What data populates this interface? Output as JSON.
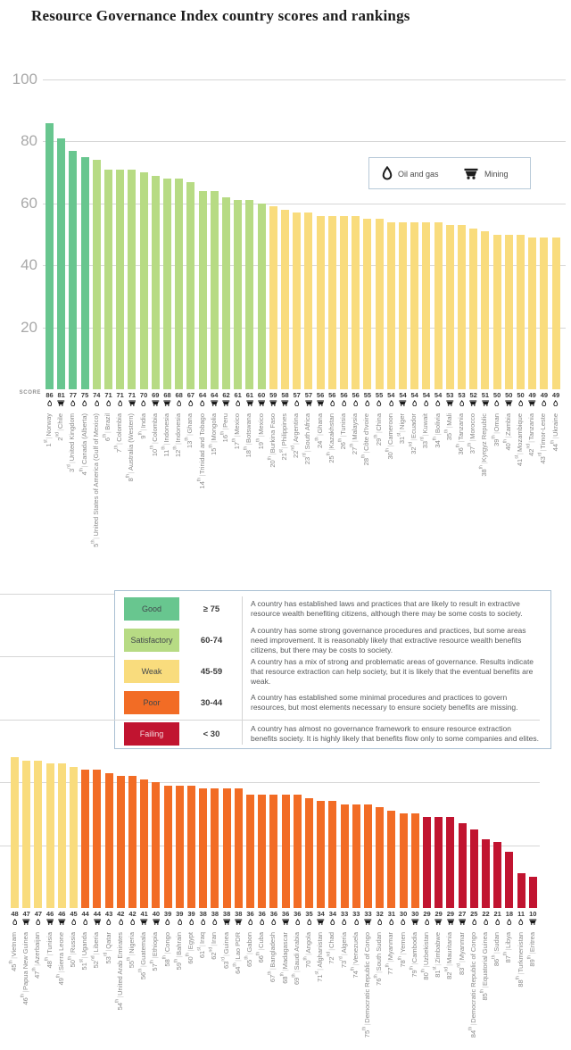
{
  "title": "Resource Governance Index country scores and rankings",
  "score_label": "SCORE",
  "sector_legend": {
    "oil_label": "Oil and gas",
    "mining_label": "Mining"
  },
  "axis": {
    "ticks": [
      20,
      40,
      60,
      80,
      100
    ]
  },
  "colors": {
    "good": "#68c68f",
    "satisfactory": "#b7db84",
    "weak": "#f9dc7d",
    "poor": "#f26c25",
    "failing": "#c11430",
    "grid": "#d6d6d6",
    "axis_text": "#a9a9a9",
    "icon": "#1c1c1c"
  },
  "legend": {
    "categories": [
      {
        "label": "Good",
        "range": "≥ 75",
        "color": "#68c68f",
        "text_color": "#41474c",
        "description": "A country has established laws and practices that are likely to result in extractive resource wealth benefiting citizens, although there may be some costs to society."
      },
      {
        "label": "Satisfactory",
        "range": "60-74",
        "color": "#b7db84",
        "text_color": "#41474c",
        "description": "A country has some strong governance procedures and practices, but some areas need improvement. It is reasonably likely that extractive resource wealth benefits citizens, but there may be costs to society."
      },
      {
        "label": "Weak",
        "range": "45-59",
        "color": "#f9dc7d",
        "text_color": "#41474c",
        "description": "A country has a mix of strong and problematic areas of governance. Results indicate that resource extraction can help society, but it is likely that the eventual benefits are weak."
      },
      {
        "label": "Poor",
        "range": "30-44",
        "color": "#f26c25",
        "text_color": "#41474c",
        "description": "A country has established some minimal procedures and practices to govern resources, but most elements necessary to ensure society benefits are missing."
      },
      {
        "label": "Failing",
        "range": "< 30",
        "color": "#c11430",
        "text_color": "#f3d7dd",
        "description": "A country has almost no governance framework to ensure resource extraction benefits society. It is highly likely that benefits flow only to some companies and elites."
      }
    ]
  },
  "chart_data": {
    "type": "bar",
    "title": "Resource Governance Index country scores and rankings",
    "ylabel": "SCORE",
    "ylim": [
      0,
      100
    ],
    "grid": true,
    "score_thresholds": {
      "good": 75,
      "satisfactory": 60,
      "weak": 45,
      "poor": 30
    },
    "entry_fields": [
      "rank",
      "country",
      "score",
      "sector"
    ],
    "panels": [
      {
        "name": "ranks-1-44",
        "entries": [
          [
            "1st",
            "Norway",
            86,
            "oil"
          ],
          [
            "2nd",
            "Chile",
            81,
            "mining"
          ],
          [
            "3rd",
            "United Kingdom",
            77,
            "oil"
          ],
          [
            "4th",
            "Canada (Alberta)",
            75,
            "oil"
          ],
          [
            "5th",
            "United States of America (Gulf of Mexico)",
            74,
            "oil"
          ],
          [
            "6th",
            "Brazil",
            71,
            "oil"
          ],
          [
            "7th",
            "Colombia",
            71,
            "oil"
          ],
          [
            "8th",
            "Australia (Western)",
            71,
            "mining"
          ],
          [
            "9th",
            "India",
            70,
            "oil"
          ],
          [
            "10th",
            "Colombia",
            69,
            "mining"
          ],
          [
            "11th",
            "Indonesia",
            68,
            "mining"
          ],
          [
            "12th",
            "Indonesia",
            68,
            "oil"
          ],
          [
            "13th",
            "Ghana",
            67,
            "oil"
          ],
          [
            "14th",
            "Trinidad and Tobago",
            64,
            "oil"
          ],
          [
            "15th",
            "Mongolia",
            64,
            "mining"
          ],
          [
            "16th",
            "Peru",
            62,
            "mining"
          ],
          [
            "17th",
            "Mexico",
            61,
            "oil"
          ],
          [
            "18th",
            "Botswana",
            61,
            "mining"
          ],
          [
            "19th",
            "Mexico",
            60,
            "mining"
          ],
          [
            "20th",
            "Burkina Faso",
            59,
            "mining"
          ],
          [
            "21st",
            "Philippines",
            58,
            "mining"
          ],
          [
            "22nd",
            "Argentina",
            57,
            "oil"
          ],
          [
            "23rd",
            "South Africa",
            57,
            "mining"
          ],
          [
            "24th",
            "Ghana",
            56,
            "mining"
          ],
          [
            "25th",
            "Kazakhstan",
            56,
            "oil"
          ],
          [
            "26th",
            "Tunisia",
            56,
            "oil"
          ],
          [
            "27th",
            "Malaysia",
            56,
            "oil"
          ],
          [
            "28th",
            "Côte d'Ivoire",
            55,
            "oil"
          ],
          [
            "29th",
            "China",
            55,
            "oil"
          ],
          [
            "30th",
            "Cameroon",
            54,
            "oil"
          ],
          [
            "31st",
            "Niger",
            54,
            "mining"
          ],
          [
            "32nd",
            "Ecuador",
            54,
            "oil"
          ],
          [
            "33rd",
            "Kuwait",
            54,
            "oil"
          ],
          [
            "34th",
            "Bolivia",
            54,
            "oil"
          ],
          [
            "35th",
            "Mali",
            53,
            "mining"
          ],
          [
            "36th",
            "Tanzania",
            53,
            "oil"
          ],
          [
            "37th",
            "Morocco",
            52,
            "mining"
          ],
          [
            "38th",
            "Kyrgyz Republic",
            51,
            "mining"
          ],
          [
            "39th",
            "Oman",
            50,
            "oil"
          ],
          [
            "40th",
            "Zambia",
            50,
            "mining"
          ],
          [
            "41st",
            "Mozambique",
            50,
            "oil"
          ],
          [
            "42nd",
            "Tanzania",
            49,
            "mining"
          ],
          [
            "43rd",
            "Timor-Leste",
            49,
            "oil"
          ],
          [
            "44th",
            "Ukraine",
            49,
            "oil"
          ]
        ]
      },
      {
        "name": "ranks-45-89",
        "entries": [
          [
            "45th",
            "Vietnam",
            48,
            "oil"
          ],
          [
            "46th",
            "Papua New Guinea",
            47,
            "mining"
          ],
          [
            "47th",
            "Azerbaijan",
            47,
            "oil"
          ],
          [
            "48th",
            "Tunisia",
            46,
            "mining"
          ],
          [
            "49th",
            "Sierra Leone",
            46,
            "mining"
          ],
          [
            "50th",
            "Russia",
            45,
            "oil"
          ],
          [
            "51st",
            "Uganda",
            44,
            "oil"
          ],
          [
            "52nd",
            "Liberia",
            44,
            "mining"
          ],
          [
            "53rd",
            "Qatar",
            43,
            "oil"
          ],
          [
            "54th",
            "United Arab Emirates",
            42,
            "oil"
          ],
          [
            "55th",
            "Nigeria",
            42,
            "oil"
          ],
          [
            "56th",
            "Guatemala",
            41,
            "mining"
          ],
          [
            "57th",
            "Ethiopia",
            40,
            "mining"
          ],
          [
            "58th",
            "Congo",
            39,
            "oil"
          ],
          [
            "59th",
            "Bahrain",
            39,
            "oil"
          ],
          [
            "60th",
            "Egypt",
            39,
            "oil"
          ],
          [
            "61st",
            "Iraq",
            38,
            "oil"
          ],
          [
            "62nd",
            "Iran",
            38,
            "oil"
          ],
          [
            "63rd",
            "Guinea",
            38,
            "mining"
          ],
          [
            "64th",
            "Lao PDR",
            38,
            "mining"
          ],
          [
            "65th",
            "Gabon",
            36,
            "oil"
          ],
          [
            "66th",
            "Cuba",
            36,
            "oil"
          ],
          [
            "67th",
            "Bangladesh",
            36,
            "oil"
          ],
          [
            "68th",
            "Madagascar",
            36,
            "mining"
          ],
          [
            "69th",
            "Saudi Arabia",
            36,
            "oil"
          ],
          [
            "70th",
            "Angola",
            35,
            "oil"
          ],
          [
            "71st",
            "Afghanistan",
            34,
            "mining"
          ],
          [
            "72nd",
            "Chad",
            34,
            "oil"
          ],
          [
            "73rd",
            "Algeria",
            33,
            "oil"
          ],
          [
            "74th",
            "Venezuela",
            33,
            "oil"
          ],
          [
            "75th",
            "Democratic Republic of Congo",
            33,
            "mining"
          ],
          [
            "76th",
            "South Sudan",
            32,
            "oil"
          ],
          [
            "77th",
            "Myanmar",
            31,
            "oil"
          ],
          [
            "78th",
            "Yemen",
            30,
            "oil"
          ],
          [
            "79th",
            "Cambodia",
            30,
            "mining"
          ],
          [
            "80th",
            "Uzbekistan",
            29,
            "oil"
          ],
          [
            "81st",
            "Zimbabwe",
            29,
            "mining"
          ],
          [
            "82nd",
            "Mauritania",
            29,
            "mining"
          ],
          [
            "83rd",
            "Myanmar",
            27,
            "mining"
          ],
          [
            "84th",
            "Democratic Republic of Congo",
            25,
            "oil"
          ],
          [
            "85th",
            "Equatorial Guinea",
            22,
            "oil"
          ],
          [
            "86th",
            "Sudan",
            21,
            "oil"
          ],
          [
            "87th",
            "Libya",
            18,
            "oil"
          ],
          [
            "88th",
            "Turkmenistan",
            11,
            "oil"
          ],
          [
            "89th",
            "Eritrea",
            10,
            "mining"
          ]
        ]
      }
    ]
  }
}
